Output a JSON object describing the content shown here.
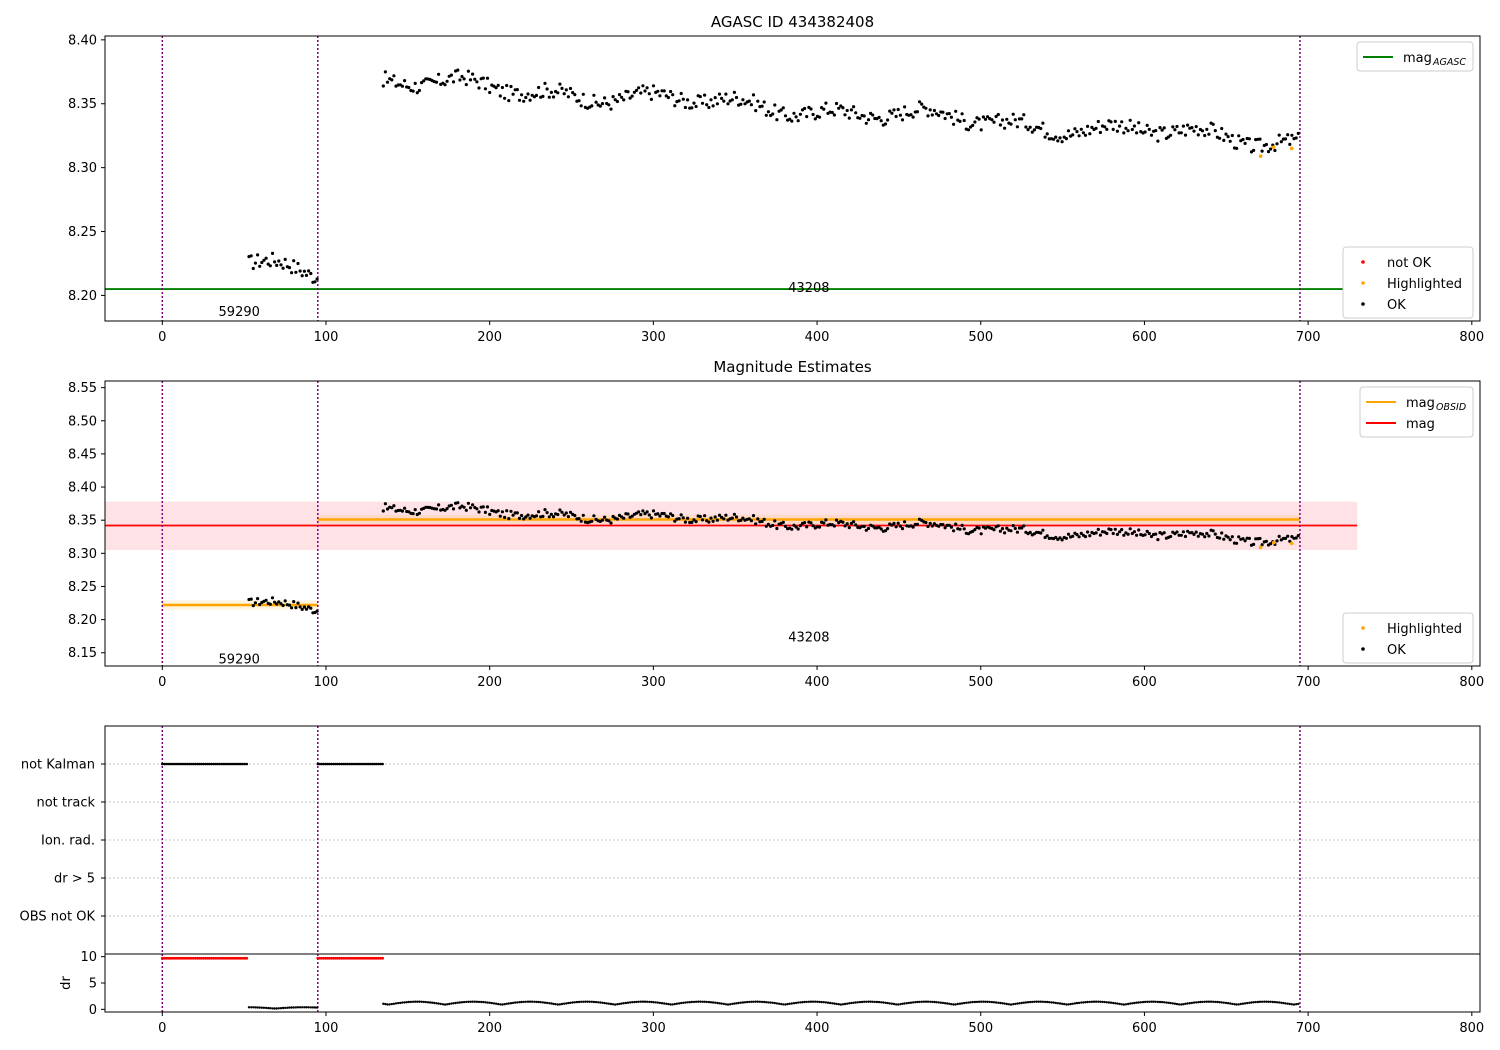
{
  "figure": {
    "title": "AGASC ID 434382408",
    "colors": {
      "ok": "#000000",
      "highlighted": "#ffa500",
      "not_ok": "#ff0000",
      "agasc": "#008000",
      "obsid": "#ffa500",
      "mag": "#ff0000",
      "obsid_line": "#800080",
      "band": "#ffb6c1"
    }
  },
  "chart_data": [
    {
      "id": "top",
      "type": "scatter",
      "title": "AGASC ID 434382408",
      "xlim": [
        -35,
        805
      ],
      "ylim": [
        8.18,
        8.403
      ],
      "x_ticks": [
        0,
        100,
        200,
        300,
        400,
        500,
        600,
        700,
        800
      ],
      "y_ticks": [
        8.2,
        8.25,
        8.3,
        8.35,
        8.4
      ],
      "y_tick_labels": [
        "8.20",
        "8.25",
        "8.30",
        "8.35",
        "8.40"
      ],
      "obsid_lines": [
        0,
        95,
        695
      ],
      "obsid_labels": [
        {
          "text": "59290",
          "x": 47,
          "y": 8.187
        },
        {
          "text": "43208",
          "x": 395,
          "y": 8.206
        }
      ],
      "agasc_mag": 8.205,
      "agasc_x": [
        -35,
        730
      ],
      "segments": [
        {
          "x_start": 53,
          "x_end": 95,
          "y_start": 8.225,
          "y_end": 8.22,
          "noise": 0.006,
          "step": 1.3
        },
        {
          "x_start": 135,
          "x_end": 695,
          "y_start": 8.368,
          "y_end": 8.32,
          "noise": 0.006,
          "step": 1.3
        }
      ],
      "highlighted": [
        [
          671,
          8.309
        ],
        [
          679,
          8.316
        ],
        [
          690,
          8.315
        ]
      ],
      "legend_top": [
        {
          "label": "mag",
          "sub": "AGASC",
          "color": "#008000"
        }
      ],
      "legend_bottom": [
        {
          "label": "not OK",
          "color": "#ff0000"
        },
        {
          "label": "Highlighted",
          "color": "#ffa500"
        },
        {
          "label": "OK",
          "color": "#000000"
        }
      ]
    },
    {
      "id": "middle",
      "type": "scatter",
      "title": "Magnitude Estimates",
      "xlim": [
        -35,
        805
      ],
      "ylim": [
        8.13,
        8.56
      ],
      "x_ticks": [
        0,
        100,
        200,
        300,
        400,
        500,
        600,
        700,
        800
      ],
      "y_ticks": [
        8.15,
        8.2,
        8.25,
        8.3,
        8.35,
        8.4,
        8.45,
        8.5,
        8.55
      ],
      "y_tick_labels": [
        "8.15",
        "8.20",
        "8.25",
        "8.30",
        "8.35",
        "8.40",
        "8.45",
        "8.50",
        "8.55"
      ],
      "obsid_lines": [
        0,
        95,
        695
      ],
      "obsid_labels": [
        {
          "text": "59290",
          "x": 47,
          "y": 8.14
        },
        {
          "text": "43208",
          "x": 395,
          "y": 8.173
        }
      ],
      "mag": 8.342,
      "mag_band": [
        8.305,
        8.378
      ],
      "mag_x": [
        -35,
        730
      ],
      "obsid_mags": [
        {
          "x": [
            0,
            95
          ],
          "y": 8.222
        },
        {
          "x": [
            95,
            695
          ],
          "y": 8.351
        }
      ],
      "segments": [
        {
          "x_start": 53,
          "x_end": 95,
          "y_start": 8.225,
          "y_end": 8.22,
          "noise": 0.006,
          "step": 1.3
        },
        {
          "x_start": 135,
          "x_end": 695,
          "y_start": 8.368,
          "y_end": 8.32,
          "noise": 0.006,
          "step": 1.3
        }
      ],
      "highlighted": [
        [
          671,
          8.309
        ],
        [
          679,
          8.316
        ],
        [
          690,
          8.315
        ]
      ],
      "legend_top": [
        {
          "label": "mag",
          "sub": "OBSID",
          "color": "#ffa500"
        },
        {
          "label": "mag",
          "sub": "",
          "color": "#ff0000"
        }
      ],
      "legend_bottom": [
        {
          "label": "Highlighted",
          "color": "#ffa500"
        },
        {
          "label": "OK",
          "color": "#000000"
        }
      ]
    },
    {
      "id": "flags",
      "type": "scatter",
      "xlim": [
        -35,
        805
      ],
      "categories": [
        "not Kalman",
        "not track",
        "Ion. rad.",
        "dr > 5",
        "OBS not OK"
      ],
      "obsid_lines": [
        0,
        95,
        695
      ],
      "flag_ranges": [
        {
          "category": "not Kalman",
          "x": [
            0,
            52
          ]
        },
        {
          "category": "not Kalman",
          "x": [
            95,
            135
          ]
        }
      ]
    },
    {
      "id": "dr",
      "type": "scatter",
      "ylabel": "dr",
      "xlim": [
        -35,
        805
      ],
      "ylim": [
        -0.5,
        10.5
      ],
      "x_ticks": [
        0,
        100,
        200,
        300,
        400,
        500,
        600,
        700,
        800
      ],
      "y_ticks": [
        0,
        5,
        10
      ],
      "obsid_lines": [
        0,
        95,
        695
      ],
      "red_ranges": [
        {
          "x": [
            0,
            52
          ],
          "y": 9.7
        },
        {
          "x": [
            95,
            135
          ],
          "y": 9.7
        }
      ],
      "segments": [
        {
          "x_start": 53,
          "x_end": 95,
          "base": 0.15,
          "amp": 0.25
        },
        {
          "x_start": 135,
          "x_end": 695,
          "base": 0.9,
          "amp": 0.55
        }
      ]
    }
  ]
}
